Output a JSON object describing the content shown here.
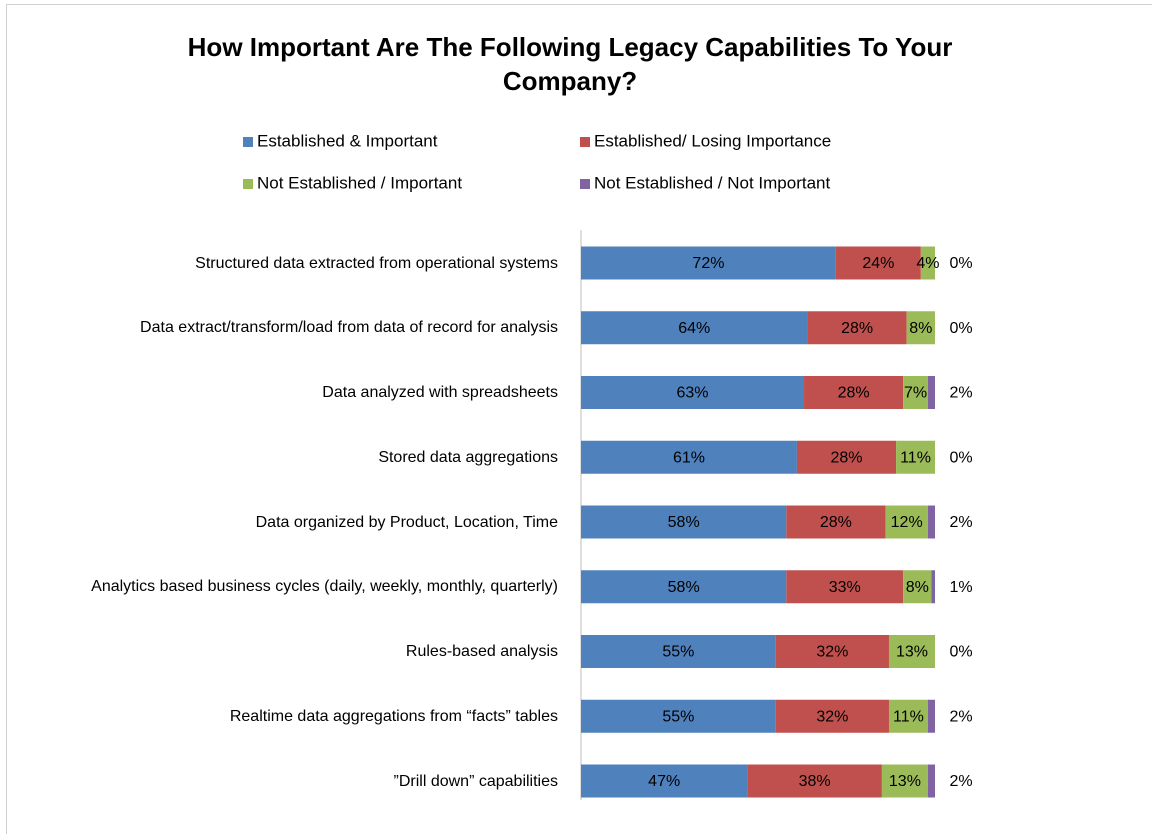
{
  "chart_data": {
    "type": "stacked_bar_horizontal",
    "title": "How Important Are The Following Legacy Capabilities To Your Company?",
    "categories": [
      "Structured data extracted from operational systems",
      "Data extract/transform/load from data of record for analysis",
      "Data analyzed with spreadsheets",
      "Stored data aggregations",
      "Data organized by Product, Location, Time",
      "Analytics based business cycles (daily, weekly, monthly, quarterly)",
      "Rules-based analysis",
      "Realtime data aggregations from “facts” tables",
      "”Drill down” capabilities"
    ],
    "series": [
      {
        "name": "Established & Important",
        "color": "#4f81bd",
        "values": [
          72,
          64,
          63,
          61,
          58,
          58,
          55,
          55,
          47
        ],
        "value_labels": [
          "72%",
          "64%",
          "63%",
          "61%",
          "58%",
          "58%",
          "55%",
          "55%",
          "47%"
        ]
      },
      {
        "name": "Established/ Losing Importance",
        "color": "#c0504d",
        "values": [
          24,
          28,
          28,
          28,
          28,
          33,
          32,
          32,
          38
        ],
        "value_labels": [
          "24%",
          "28%",
          "28%",
          "28%",
          "28%",
          "33%",
          "32%",
          "32%",
          "38%"
        ]
      },
      {
        "name": "Not Established /  Important",
        "color": "#9bbb59",
        "values": [
          4,
          8,
          7,
          11,
          12,
          8,
          13,
          11,
          13
        ],
        "value_labels": [
          "4%",
          "8%",
          "7%",
          "11%",
          "12%",
          "8%",
          "13%",
          "11%",
          "13%"
        ]
      },
      {
        "name": "Not Established /  Not Important",
        "color": "#8064a2",
        "values": [
          0,
          0,
          2,
          0,
          2,
          1,
          0,
          2,
          2
        ],
        "value_labels": [
          "0%",
          "0%",
          "2%",
          "0%",
          "2%",
          "1%",
          "0%",
          "2%",
          "2%"
        ]
      }
    ],
    "legend": "top"
  }
}
